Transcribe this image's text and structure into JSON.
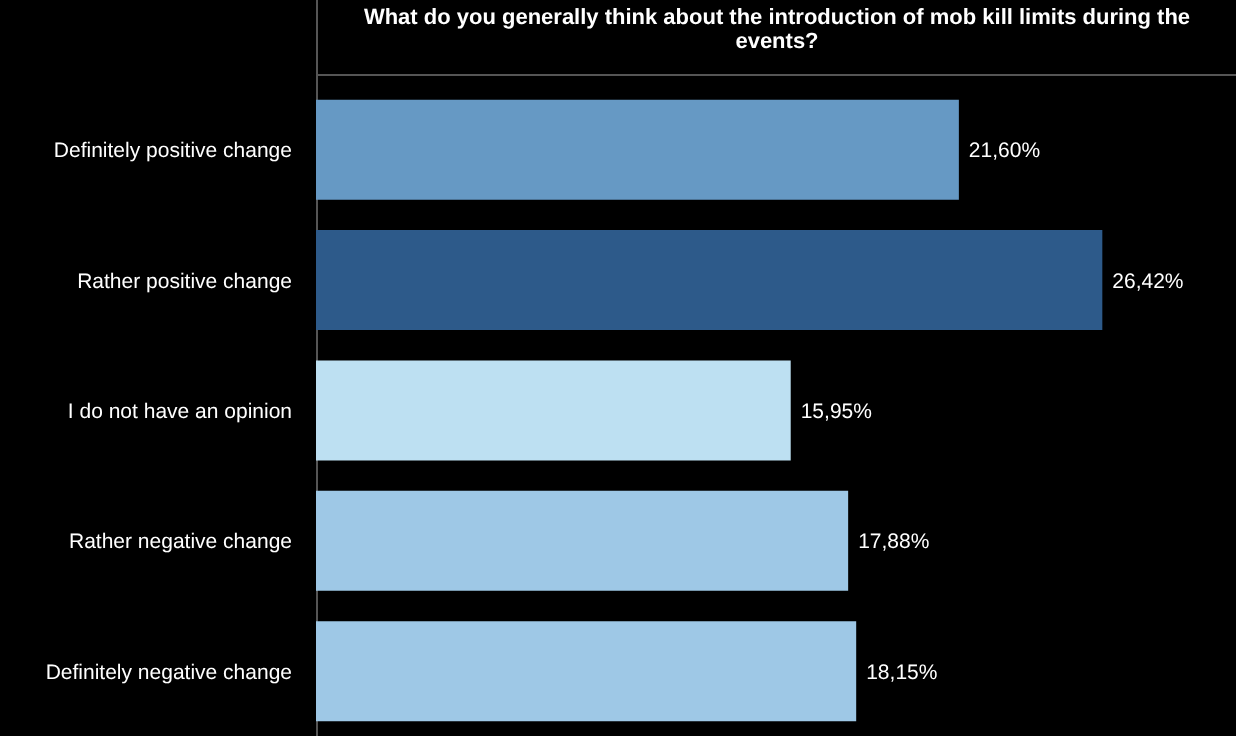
{
  "chart_data": {
    "type": "bar",
    "orientation": "horizontal",
    "title": "What do you generally think about the introduction of mob kill limits during the events?",
    "categories": [
      "Definitely positive change",
      "Rather positive change",
      "I do not have an opinion",
      "Rather negative change",
      "Definitely negative change"
    ],
    "values": [
      21.6,
      26.42,
      15.95,
      17.88,
      18.15
    ],
    "colors": [
      "#6699c4",
      "#2d5a8a",
      "#bde0f2",
      "#9ec8e6",
      "#9ec8e6"
    ],
    "value_labels": [
      "21,60%",
      "26,42%",
      "15,95%",
      "17,88%",
      "18,15%"
    ]
  }
}
